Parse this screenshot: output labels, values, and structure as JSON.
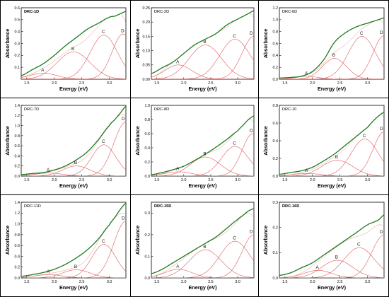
{
  "panel_labels": [
    "DRC-1D",
    "DRC-2D",
    "DRC-6D",
    "DRC-7D",
    "DRC-8D",
    "DRC-10",
    "DRC-11D",
    "DRC-15D",
    "DRC-16D"
  ],
  "colors": {
    "measured": "#1e7a1e",
    "fit": "#e05a5a",
    "axis": "#000000"
  },
  "chart_data": [
    {
      "type": "line",
      "title": "DRC-1D",
      "title_bold": true,
      "xlabel": "Energy (eV)",
      "ylabel": "Absorbance",
      "xlim": [
        1.4,
        3.3
      ],
      "ylim": [
        0,
        0.6
      ],
      "xticks": [
        1.5,
        2.0,
        2.5,
        3.0
      ],
      "xtick_labels": [
        "1.5",
        "2.0",
        "2.5",
        "3.0"
      ],
      "yticks": [
        0.1,
        0.2,
        0.3,
        0.4,
        0.5,
        0.6
      ],
      "ytick_labels": [
        "0.1",
        "0.2",
        "0.3",
        "0.4",
        "0.5",
        "0.6"
      ],
      "measured": {
        "x": [
          1.4,
          1.6,
          1.8,
          2.0,
          2.2,
          2.4,
          2.6,
          2.8,
          3.0,
          3.1,
          3.2,
          3.3
        ],
        "y": [
          0.03,
          0.08,
          0.13,
          0.2,
          0.28,
          0.35,
          0.42,
          0.47,
          0.52,
          0.53,
          0.55,
          0.57
        ]
      },
      "peaks": [
        {
          "label": "A",
          "center": 1.8,
          "amplitude": 0.05,
          "width": 0.25
        },
        {
          "label": "B",
          "center": 2.35,
          "amplitude": 0.23,
          "width": 0.3
        },
        {
          "label": "C",
          "center": 2.9,
          "amplitude": 0.37,
          "width": 0.25
        },
        {
          "label": "D",
          "center": 3.25,
          "amplitude": 0.38,
          "width": 0.2
        }
      ]
    },
    {
      "type": "line",
      "title": "DRC-2D",
      "title_bold": false,
      "xlabel": "Energy (eV)",
      "ylabel": "Absorbance",
      "xlim": [
        1.4,
        3.3
      ],
      "ylim": [
        0,
        0.25
      ],
      "xticks": [
        1.5,
        2.0,
        2.5,
        3.0
      ],
      "xtick_labels": [
        "1.5",
        "2.0",
        "2.5",
        "3.0"
      ],
      "yticks": [
        0.0,
        0.05,
        0.1,
        0.15,
        0.2,
        0.25
      ],
      "ytick_labels": [
        "0.00",
        "0.05",
        "0.10",
        "0.15",
        "0.20",
        "0.25"
      ],
      "measured": {
        "x": [
          1.4,
          1.6,
          1.8,
          2.0,
          2.2,
          2.4,
          2.6,
          2.8,
          3.0,
          3.1,
          3.2,
          3.3
        ],
        "y": [
          0.02,
          0.04,
          0.06,
          0.09,
          0.12,
          0.14,
          0.16,
          0.19,
          0.21,
          0.22,
          0.23,
          0.24
        ]
      },
      "peaks": [
        {
          "label": "A",
          "center": 1.9,
          "amplitude": 0.05,
          "width": 0.25
        },
        {
          "label": "B",
          "center": 2.4,
          "amplitude": 0.12,
          "width": 0.3
        },
        {
          "label": "C",
          "center": 2.95,
          "amplitude": 0.14,
          "width": 0.28
        },
        {
          "label": "D",
          "center": 3.3,
          "amplitude": 0.15,
          "width": 0.22
        }
      ]
    },
    {
      "type": "line",
      "title": "DRC-6D",
      "title_bold": false,
      "xlabel": "Energy (eV)",
      "ylabel": "Absorbance",
      "xlim": [
        1.4,
        3.3
      ],
      "ylim": [
        0,
        1.2
      ],
      "xticks": [
        1.5,
        2.0,
        2.5,
        3.0
      ],
      "xtick_labels": [
        "1.5",
        "2.0",
        "2.5",
        "3.0"
      ],
      "yticks": [
        0.0,
        0.2,
        0.4,
        0.6,
        0.8,
        1.0,
        1.2
      ],
      "ytick_labels": [
        "0.0",
        "0.2",
        "0.4",
        "0.6",
        "0.8",
        "1.0",
        "1.2"
      ],
      "measured": {
        "x": [
          1.4,
          1.6,
          1.8,
          2.0,
          2.2,
          2.4,
          2.6,
          2.8,
          3.0,
          3.1,
          3.2,
          3.3
        ],
        "y": [
          0.02,
          0.03,
          0.05,
          0.13,
          0.32,
          0.62,
          0.78,
          0.88,
          0.94,
          0.97,
          1.0,
          1.03
        ]
      },
      "peaks": [
        {
          "label": "A",
          "center": 1.9,
          "amplitude": 0.05,
          "width": 0.2
        },
        {
          "label": "B",
          "center": 2.4,
          "amplitude": 0.35,
          "width": 0.22
        },
        {
          "label": "C",
          "center": 2.9,
          "amplitude": 0.72,
          "width": 0.25
        },
        {
          "label": "D",
          "center": 3.3,
          "amplitude": 0.73,
          "width": 0.2
        }
      ]
    },
    {
      "type": "line",
      "title": "DRC-7D",
      "title_bold": false,
      "xlabel": "Energy (eV)",
      "ylabel": "Absorbance",
      "xlim": [
        1.4,
        3.3
      ],
      "ylim": [
        0,
        1.4
      ],
      "xticks": [
        1.5,
        2.0,
        2.5,
        3.0
      ],
      "xtick_labels": [
        "1.5",
        "2.0",
        "2.5",
        "3.0"
      ],
      "yticks": [
        0.0,
        0.2,
        0.4,
        0.6,
        0.8,
        1.0,
        1.2,
        1.4
      ],
      "ytick_labels": [
        "0.0",
        "0.2",
        "0.4",
        "0.6",
        "0.8",
        "1.0",
        "1.2",
        "1.4"
      ],
      "measured": {
        "x": [
          1.4,
          1.6,
          1.8,
          2.0,
          2.2,
          2.4,
          2.6,
          2.8,
          3.0,
          3.1,
          3.2,
          3.3
        ],
        "y": [
          0.03,
          0.05,
          0.07,
          0.12,
          0.2,
          0.32,
          0.48,
          0.72,
          1.0,
          1.12,
          1.25,
          1.38
        ]
      },
      "peaks": [
        {
          "label": "A",
          "center": 1.9,
          "amplitude": 0.06,
          "width": 0.25
        },
        {
          "label": "B",
          "center": 2.4,
          "amplitude": 0.2,
          "width": 0.25
        },
        {
          "label": "C",
          "center": 2.9,
          "amplitude": 0.62,
          "width": 0.22
        },
        {
          "label": "D",
          "center": 3.3,
          "amplitude": 1.07,
          "width": 0.22
        }
      ]
    },
    {
      "type": "line",
      "title": "DRC-8D",
      "title_bold": false,
      "xlabel": "Energy (eV)",
      "ylabel": "Absorbance",
      "xlim": [
        1.4,
        3.3
      ],
      "ylim": [
        0,
        1.0
      ],
      "xticks": [
        1.5,
        2.0,
        2.5,
        3.0
      ],
      "xtick_labels": [
        "1.5",
        "2.0",
        "2.5",
        "3.0"
      ],
      "yticks": [
        0.0,
        0.2,
        0.4,
        0.6,
        0.8,
        1.0
      ],
      "ytick_labels": [
        "0.0",
        "0.2",
        "0.4",
        "0.6",
        "0.8",
        "1.0"
      ],
      "measured": {
        "x": [
          1.4,
          1.6,
          1.8,
          2.0,
          2.2,
          2.4,
          2.6,
          2.8,
          3.0,
          3.1,
          3.2,
          3.3
        ],
        "y": [
          0.02,
          0.05,
          0.09,
          0.14,
          0.22,
          0.31,
          0.41,
          0.52,
          0.64,
          0.72,
          0.8,
          0.85
        ]
      },
      "peaks": [
        {
          "label": "A",
          "center": 1.9,
          "amplitude": 0.06,
          "width": 0.25
        },
        {
          "label": "B",
          "center": 2.4,
          "amplitude": 0.27,
          "width": 0.28
        },
        {
          "label": "C",
          "center": 2.95,
          "amplitude": 0.42,
          "width": 0.25
        },
        {
          "label": "D",
          "center": 3.28,
          "amplitude": 0.6,
          "width": 0.2
        }
      ]
    },
    {
      "type": "line",
      "title": "DRC-10",
      "title_bold": false,
      "xlabel": "Energy (eV)",
      "ylabel": "Absorbance",
      "xlim": [
        1.4,
        3.3
      ],
      "ylim": [
        0,
        0.8
      ],
      "xticks": [
        1.5,
        2.0,
        2.5,
        3.0
      ],
      "xtick_labels": [
        "1.5",
        "2.0",
        "2.5",
        "3.0"
      ],
      "yticks": [
        0.0,
        0.2,
        0.4,
        0.6,
        0.8
      ],
      "ytick_labels": [
        "0.0",
        "0.2",
        "0.4",
        "0.6",
        "0.8"
      ],
      "measured": {
        "x": [
          1.4,
          1.6,
          1.8,
          2.0,
          2.2,
          2.4,
          2.6,
          2.8,
          3.0,
          3.1,
          3.2,
          3.3
        ],
        "y": [
          0.02,
          0.04,
          0.06,
          0.1,
          0.17,
          0.25,
          0.35,
          0.45,
          0.55,
          0.62,
          0.68,
          0.72
        ]
      },
      "peaks": [
        {
          "label": "A",
          "center": 1.9,
          "amplitude": 0.03,
          "width": 0.25
        },
        {
          "label": "B",
          "center": 2.45,
          "amplitude": 0.18,
          "width": 0.28
        },
        {
          "label": "C",
          "center": 2.95,
          "amplitude": 0.42,
          "width": 0.25
        },
        {
          "label": "D",
          "center": 3.3,
          "amplitude": 0.5,
          "width": 0.2
        }
      ]
    },
    {
      "type": "line",
      "title": "DRC-11D",
      "title_bold": false,
      "xlabel": "Energy (eV)",
      "ylabel": "Absorbance",
      "xlim": [
        1.4,
        3.3
      ],
      "ylim": [
        0,
        1.4
      ],
      "xticks": [
        1.5,
        2.0,
        2.5,
        3.0
      ],
      "xtick_labels": [
        "1.5",
        "2.0",
        "2.5",
        "3.0"
      ],
      "yticks": [
        0.0,
        0.2,
        0.4,
        0.6,
        0.8,
        1.0,
        1.2,
        1.4
      ],
      "ytick_labels": [
        "0.0",
        "0.2",
        "0.4",
        "0.6",
        "0.8",
        "1.0",
        "1.2",
        "1.4"
      ],
      "measured": {
        "x": [
          1.4,
          1.6,
          1.8,
          2.0,
          2.2,
          2.4,
          2.6,
          2.8,
          3.0,
          3.1,
          3.2,
          3.3
        ],
        "y": [
          0.03,
          0.06,
          0.1,
          0.16,
          0.25,
          0.37,
          0.52,
          0.72,
          0.98,
          1.12,
          1.27,
          1.38
        ]
      },
      "peaks": [
        {
          "label": "A",
          "center": 1.9,
          "amplitude": 0.06,
          "width": 0.25
        },
        {
          "label": "B",
          "center": 2.4,
          "amplitude": 0.15,
          "width": 0.25
        },
        {
          "label": "C",
          "center": 2.9,
          "amplitude": 0.62,
          "width": 0.22
        },
        {
          "label": "D",
          "center": 3.3,
          "amplitude": 1.05,
          "width": 0.22
        }
      ]
    },
    {
      "type": "line",
      "title": "DRC-15D",
      "title_bold": true,
      "xlabel": "Energy (eV)",
      "ylabel": "Absorbance",
      "xlim": [
        1.4,
        3.3
      ],
      "ylim": [
        0,
        0.35
      ],
      "xticks": [
        1.5,
        2.0,
        2.5,
        3.0
      ],
      "xtick_labels": [
        "1.5",
        "2.0",
        "2.5",
        "3.0"
      ],
      "yticks": [
        0.0,
        0.1,
        0.2,
        0.3
      ],
      "ytick_labels": [
        "0.0",
        "0.1",
        "0.2",
        "0.3"
      ],
      "measured": {
        "x": [
          1.4,
          1.6,
          1.8,
          2.0,
          2.2,
          2.4,
          2.6,
          2.8,
          3.0,
          3.1,
          3.2,
          3.3
        ],
        "y": [
          0.02,
          0.04,
          0.07,
          0.1,
          0.13,
          0.16,
          0.19,
          0.23,
          0.27,
          0.29,
          0.31,
          0.32
        ]
      },
      "peaks": [
        {
          "label": "A",
          "center": 1.9,
          "amplitude": 0.04,
          "width": 0.25
        },
        {
          "label": "B",
          "center": 2.4,
          "amplitude": 0.13,
          "width": 0.3
        },
        {
          "label": "C",
          "center": 2.95,
          "amplitude": 0.17,
          "width": 0.28
        },
        {
          "label": "D",
          "center": 3.3,
          "amplitude": 0.2,
          "width": 0.22
        }
      ]
    },
    {
      "type": "line",
      "title": "DRC-16D",
      "title_bold": true,
      "xlabel": "Energy (eV)",
      "ylabel": "Absorbance",
      "xlim": [
        1.4,
        3.3
      ],
      "ylim": [
        0,
        0.3
      ],
      "xticks": [
        1.5,
        2.0,
        2.5,
        3.0
      ],
      "xtick_labels": [
        "1.5",
        "2.0",
        "2.5",
        "3.0"
      ],
      "yticks": [
        0.0,
        0.1,
        0.2,
        0.3
      ],
      "ytick_labels": [
        "0.0",
        "0.1",
        "0.2",
        "0.3"
      ],
      "measured": {
        "x": [
          1.4,
          1.6,
          1.8,
          2.0,
          2.2,
          2.4,
          2.6,
          2.8,
          3.0,
          3.1,
          3.2,
          3.3
        ],
        "y": [
          0.01,
          0.02,
          0.04,
          0.06,
          0.09,
          0.12,
          0.15,
          0.18,
          0.21,
          0.22,
          0.23,
          0.25
        ]
      },
      "peaks": [
        {
          "label": "A",
          "center": 2.1,
          "amplitude": 0.03,
          "width": 0.25
        },
        {
          "label": "B",
          "center": 2.45,
          "amplitude": 0.07,
          "width": 0.28
        },
        {
          "label": "C",
          "center": 2.85,
          "amplitude": 0.12,
          "width": 0.28
        },
        {
          "label": "D",
          "center": 3.3,
          "amplitude": 0.17,
          "width": 0.22
        }
      ]
    }
  ]
}
